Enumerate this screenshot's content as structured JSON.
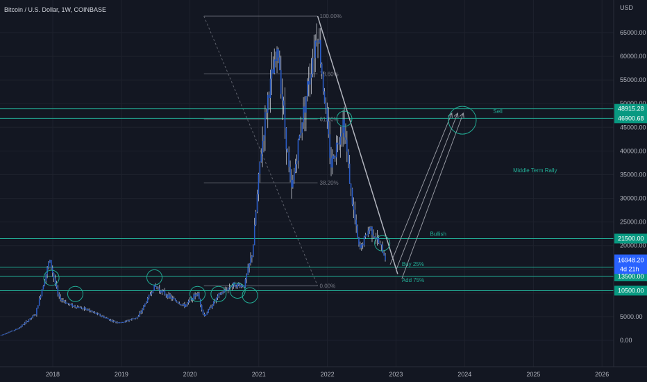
{
  "header": {
    "symbol_title": "Bitcoin / U.S. Dollar, 1W, COINBASE",
    "currency": "USD"
  },
  "colors": {
    "background": "#131722",
    "candle": "#2a5cc6",
    "candle_wick": "#c8cbd4",
    "level_line": "#22ab94",
    "tag_bg": "#089981",
    "price_tag_bg": "#2962ff",
    "fib_line": "#5d606b",
    "trend_line": "#b2b5be",
    "arrow": "#9598a1"
  },
  "chart_data": {
    "type": "candlestick",
    "title": "Bitcoin / U.S. Dollar, 1W, COINBASE",
    "y_axis_unit": "USD",
    "ylim": [
      -3000,
      73000
    ],
    "xlim": [
      "2017-04-01",
      "2026-06-01"
    ],
    "y_ticks": [
      "0.00",
      "5000.00",
      "10000.00",
      "15000.00",
      "20000.00",
      "25000.00",
      "30000.00",
      "35000.00",
      "40000.00",
      "45000.00",
      "50000.00",
      "55000.00",
      "60000.00",
      "65000.00"
    ],
    "x_ticks": [
      "2018",
      "2019",
      "2020",
      "2021",
      "2022",
      "2023",
      "2024",
      "2025",
      "2026"
    ],
    "price_path": [
      [
        "2017-04-01",
        1100
      ],
      [
        "2017-07-01",
        2500
      ],
      [
        "2017-10-01",
        5500
      ],
      [
        "2017-12-15",
        17000
      ],
      [
        "2018-02-01",
        9000
      ],
      [
        "2018-04-01",
        7500
      ],
      [
        "2018-07-01",
        6500
      ],
      [
        "2018-11-20",
        4000
      ],
      [
        "2019-01-01",
        3700
      ],
      [
        "2019-04-01",
        5000
      ],
      [
        "2019-06-26",
        11500
      ],
      [
        "2019-09-01",
        9500
      ],
      [
        "2019-12-01",
        7200
      ],
      [
        "2020-02-10",
        10000
      ],
      [
        "2020-03-15",
        5000
      ],
      [
        "2020-06-01",
        9500
      ],
      [
        "2020-08-15",
        11800
      ],
      [
        "2020-10-15",
        11500
      ],
      [
        "2020-11-30",
        19000
      ],
      [
        "2021-01-08",
        38000
      ],
      [
        "2021-02-20",
        52000
      ],
      [
        "2021-04-14",
        61000
      ],
      [
        "2021-06-22",
        31000
      ],
      [
        "2021-08-20",
        47000
      ],
      [
        "2021-11-10",
        66000
      ],
      [
        "2022-01-20",
        37000
      ],
      [
        "2022-03-28",
        46500
      ],
      [
        "2022-05-10",
        30000
      ],
      [
        "2022-06-20",
        19000
      ],
      [
        "2022-08-15",
        24000
      ],
      [
        "2022-10-15",
        19500
      ],
      [
        "2022-11-10",
        16948.2
      ]
    ],
    "current_price": "16948.20",
    "countdown": "4d 21h",
    "horizontal_levels": [
      {
        "value": 48915.28,
        "label": "48915.28"
      },
      {
        "value": 46900.68,
        "label": "46900.68"
      },
      {
        "value": 21500.0,
        "label": "21500.00"
      },
      {
        "value": 15440.39,
        "label": "15440.39"
      },
      {
        "value": 13500.0,
        "label": "13500.00"
      },
      {
        "value": 10500.0,
        "label": "10500.00"
      }
    ],
    "fibonacci": [
      {
        "ratio": 1.0,
        "label": "100.00%"
      },
      {
        "ratio": 0.786,
        "label": "78.60%"
      },
      {
        "ratio": 0.618,
        "label": "61.80%"
      },
      {
        "ratio": 0.382,
        "label": "38.20%"
      },
      {
        "ratio": 0.0,
        "label": "0.00%"
      }
    ],
    "fib_range": {
      "start": "2020-03-15",
      "end": "2021-11-10",
      "low": 11500,
      "high": 68500
    },
    "annotations": [
      {
        "text": "Sell",
        "date": "2024-06-01",
        "value": 48000
      },
      {
        "text": "Middle Term Rally",
        "date": "2024-09-15",
        "value": 35500
      },
      {
        "text": "Bullish",
        "date": "2023-07-01",
        "value": 22100
      },
      {
        "text": "Buy 25%",
        "date": "2023-02-01",
        "value": 15700
      },
      {
        "text": "Add 75%",
        "date": "2023-02-01",
        "value": 12300
      }
    ],
    "circles": [
      {
        "date": "2017-12-25",
        "value": 13200
      },
      {
        "date": "2018-05-01",
        "value": 9800
      },
      {
        "date": "2019-06-26",
        "value": 13300
      },
      {
        "date": "2020-02-10",
        "value": 9800
      },
      {
        "date": "2020-06-01",
        "value": 9800
      },
      {
        "date": "2020-09-10",
        "value": 10500
      },
      {
        "date": "2020-11-15",
        "value": 9500
      },
      {
        "date": "2022-04-01",
        "value": 46800
      },
      {
        "date": "2022-10-20",
        "value": 20500
      },
      {
        "date": "2023-12-20",
        "value": 46500
      }
    ],
    "downtrend_line": [
      [
        "2021-11-10",
        68500
      ],
      [
        "2023-01-10",
        14000
      ]
    ],
    "projection_lines": [
      [
        [
          "2022-12-01",
          16000
        ],
        [
          "2023-10-25",
          48000
        ]
      ],
      [
        [
          "2023-01-01",
          14800
        ],
        [
          "2023-11-25",
          48000
        ]
      ],
      [
        [
          "2023-02-01",
          13000
        ],
        [
          "2023-12-25",
          48000
        ]
      ]
    ]
  }
}
